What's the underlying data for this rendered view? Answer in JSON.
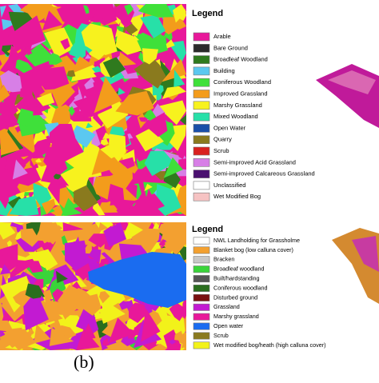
{
  "panel_a": {
    "legend": {
      "title": "Legend",
      "items": [
        {
          "label": "Arable",
          "color": "#e8189a"
        },
        {
          "label": "Bare Ground",
          "color": "#2b2b2b"
        },
        {
          "label": "Broadleaf Woodland",
          "color": "#2f7a1e"
        },
        {
          "label": "Building",
          "color": "#5bc8f0"
        },
        {
          "label": "Coniferous Woodland",
          "color": "#3fe03a"
        },
        {
          "label": "Improved Grassland",
          "color": "#f39c1b"
        },
        {
          "label": "Marshy Grassland",
          "color": "#f7f21e"
        },
        {
          "label": "Mixed Woodland",
          "color": "#27e0a8"
        },
        {
          "label": "Open Water",
          "color": "#1a4fa8"
        },
        {
          "label": "Quarry",
          "color": "#8a7a1e"
        },
        {
          "label": "Scrub",
          "color": "#d9201f"
        },
        {
          "label": "Semi-improved Acid Grassland",
          "color": "#d77fe6"
        },
        {
          "label": "Semi-improved Calcareous Grassland",
          "color": "#4a1070"
        },
        {
          "label": "Unclassified",
          "color": "#ffffff"
        },
        {
          "label": "Wet Modified Bog",
          "color": "#f6c3c3"
        }
      ]
    }
  },
  "panel_b": {
    "caption": "(b)",
    "legend": {
      "title": "Legend",
      "items": [
        {
          "label": "NWL Landholding for Grassholme",
          "color": "#ffffff"
        },
        {
          "label": "Blanket bog (low calluna cover)",
          "color": "#f3a030"
        },
        {
          "label": "Bracken",
          "color": "#c8c8c8"
        },
        {
          "label": "Broadleaf woodland",
          "color": "#3ad43a"
        },
        {
          "label": "Built/hardstanding",
          "color": "#555555"
        },
        {
          "label": "Coniferous woodland",
          "color": "#2a6e1e"
        },
        {
          "label": "Disturbed ground",
          "color": "#7a1010"
        },
        {
          "label": "Grassland",
          "color": "#c21ad2"
        },
        {
          "label": "Marshy grassland",
          "color": "#e8189a"
        },
        {
          "label": "Open water",
          "color": "#1a6cf0"
        },
        {
          "label": "Scrub",
          "color": "#8a7a1e"
        },
        {
          "label": "Wet modified bog/heath (high calluna cover)",
          "color": "#f2f21a"
        }
      ]
    }
  }
}
